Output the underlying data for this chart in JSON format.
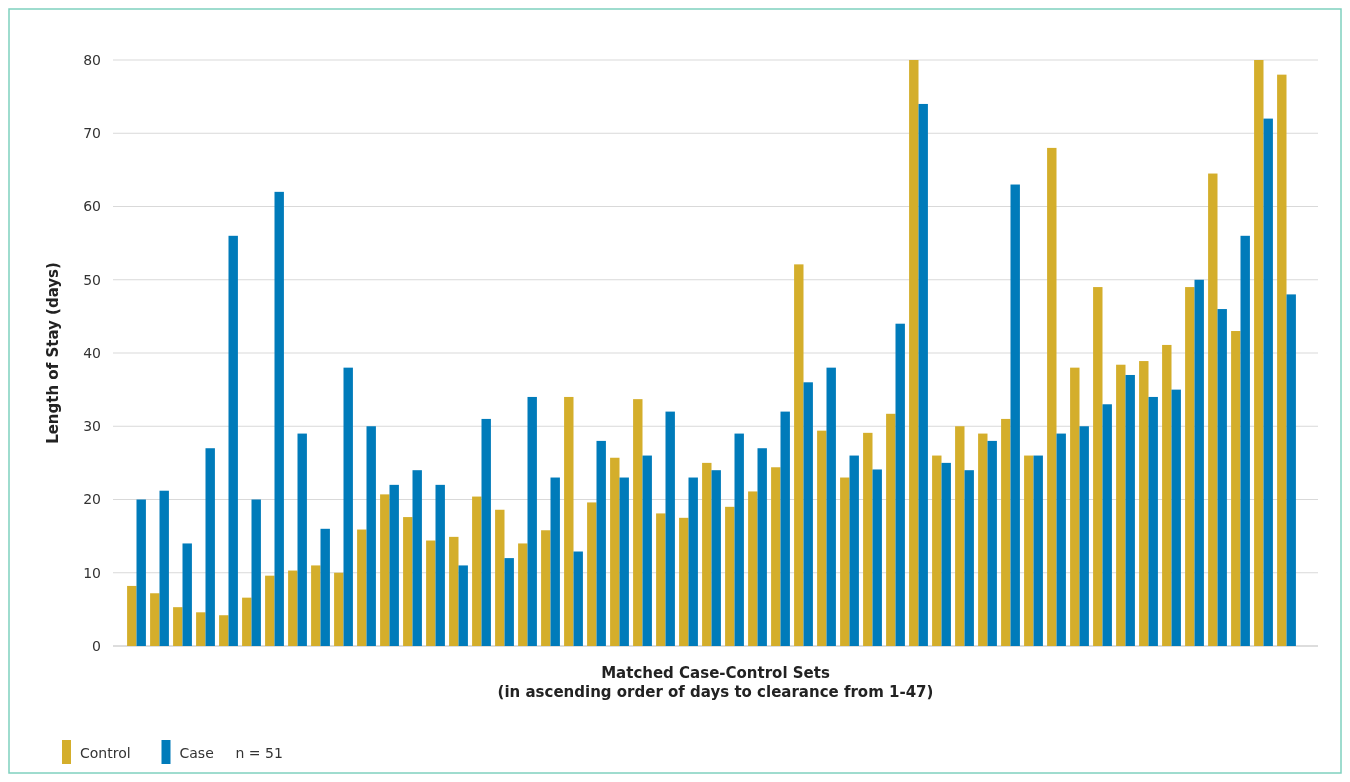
{
  "chart_data": {
    "type": "bar",
    "xlabel": "Matched Case-Control Sets\n(in ascending order of days to clearance from 1-47)",
    "ylabel": "Length of Stay (days)",
    "categories": [
      null,
      null,
      null,
      null,
      null,
      null,
      null,
      null,
      null,
      null,
      null,
      null,
      null,
      null,
      null,
      null,
      null,
      null,
      null,
      null,
      null,
      null,
      null,
      null,
      null,
      null,
      null,
      null,
      null,
      null,
      null,
      null,
      null,
      null,
      null,
      null,
      null,
      null,
      null,
      null,
      null,
      null,
      null,
      null,
      null,
      null,
      null,
      null,
      null,
      null,
      null
    ],
    "series": [
      {
        "name": "Control",
        "color": "#d4ae2b",
        "values": [
          8.2,
          7.2,
          5.3,
          4.6,
          4.2,
          6.6,
          9.6,
          10.3,
          11,
          10,
          15.9,
          20.7,
          17.6,
          14.4,
          14.9,
          20.4,
          18.6,
          14,
          15.8,
          34,
          19.6,
          25.7,
          33.7,
          18.1,
          17.5,
          25,
          19,
          21.1,
          24.4,
          52.1,
          29.4,
          23,
          29.1,
          31.7,
          80,
          26,
          30,
          29,
          31,
          26,
          68,
          38,
          49,
          38.4,
          38.9,
          41.1,
          49,
          64.5,
          43,
          80,
          78
        ]
      },
      {
        "name": "Case",
        "color": "#007bba",
        "values": [
          20,
          21.2,
          14,
          27,
          56,
          20,
          62,
          29,
          16,
          38,
          30,
          22,
          24,
          22,
          11,
          31,
          12,
          34,
          23,
          12.9,
          28,
          23,
          26,
          32,
          23,
          24,
          29,
          27,
          32,
          36,
          38,
          26,
          24.1,
          44,
          74,
          25,
          24,
          28,
          63,
          26,
          29,
          30,
          33,
          37,
          34,
          35,
          50,
          46,
          56,
          72,
          48
        ]
      }
    ],
    "ylim": [
      0,
      80
    ],
    "yticks": [
      0,
      10,
      20,
      30,
      40,
      50,
      60,
      70,
      80
    ],
    "grid": "y",
    "legend": "bottom left",
    "annotations": [
      "n = 51"
    ]
  }
}
